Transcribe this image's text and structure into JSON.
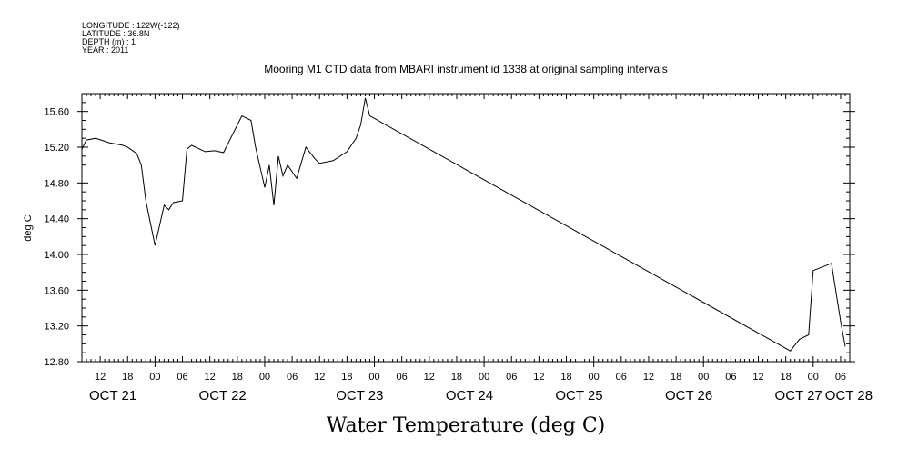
{
  "header": {
    "lines": [
      "LONGITUDE : 122W(-122)",
      "LATITUDE : 36.8N",
      "DEPTH (m) : 1",
      "YEAR : 2011"
    ]
  },
  "chart_data": {
    "type": "line",
    "title": "Mooring M1 CTD data from MBARI instrument id 1338 at original sampling intervals",
    "xlabel": "Water Temperature (deg C)",
    "ylabel": "deg C",
    "ylim": [
      12.8,
      15.8
    ],
    "yticks": [
      12.8,
      13.2,
      13.6,
      14.0,
      14.4,
      14.8,
      15.2,
      15.6
    ],
    "ytick_labels": [
      "12.80",
      "13.20",
      "13.60",
      "14.00",
      "14.40",
      "14.80",
      "15.20",
      "15.60"
    ],
    "xlim": [
      "2011-10-21T08:00",
      "2011-10-28T08:00"
    ],
    "xtick_labels": [
      "12",
      "18",
      "00",
      "06",
      "12",
      "18",
      "00",
      "06",
      "12",
      "18",
      "00",
      "06",
      "12",
      "18",
      "00",
      "06",
      "12",
      "18",
      "00",
      "06",
      "12",
      "18",
      "00",
      "06",
      "12",
      "18",
      "00",
      "06"
    ],
    "day_labels": [
      "OCT 21",
      "OCT 22",
      "OCT 23",
      "OCT 24",
      "OCT 25",
      "OCT 26",
      "OCT 27",
      "OCT 28"
    ],
    "grid": false,
    "x": [
      "2011-10-21T08:00",
      "2011-10-21T09:00",
      "2011-10-21T11:00",
      "2011-10-21T14:00",
      "2011-10-21T17:00",
      "2011-10-21T18:00",
      "2011-10-21T20:00",
      "2011-10-21T21:00",
      "2011-10-21T22:00",
      "2011-10-22T00:00",
      "2011-10-22T02:00",
      "2011-10-22T03:00",
      "2011-10-22T04:00",
      "2011-10-22T06:00",
      "2011-10-22T07:00",
      "2011-10-22T08:00",
      "2011-10-22T11:00",
      "2011-10-22T13:00",
      "2011-10-22T15:00",
      "2011-10-22T19:00",
      "2011-10-22T21:00",
      "2011-10-22T22:00",
      "2011-10-23T00:00",
      "2011-10-23T01:00",
      "2011-10-23T02:00",
      "2011-10-23T03:00",
      "2011-10-23T04:00",
      "2011-10-23T05:00",
      "2011-10-23T07:00",
      "2011-10-23T09:00",
      "2011-10-23T11:00",
      "2011-10-23T12:00",
      "2011-10-23T15:00",
      "2011-10-23T18:00",
      "2011-10-23T20:00",
      "2011-10-23T21:00",
      "2011-10-23T22:00",
      "2011-10-23T23:00",
      "2011-10-27T19:00",
      "2011-10-27T21:00",
      "2011-10-27T23:00",
      "2011-10-28T00:00",
      "2011-10-28T02:00",
      "2011-10-28T04:00",
      "2011-10-28T06:00",
      "2011-10-28T07:00"
    ],
    "y": [
      15.18,
      15.28,
      15.3,
      15.25,
      15.22,
      15.2,
      15.13,
      15.0,
      14.6,
      14.1,
      14.55,
      14.5,
      14.58,
      14.6,
      15.18,
      15.22,
      15.15,
      15.16,
      15.14,
      15.55,
      15.5,
      15.2,
      14.75,
      15.0,
      14.55,
      15.1,
      14.88,
      15.0,
      14.85,
      15.2,
      15.07,
      15.02,
      15.05,
      15.15,
      15.3,
      15.45,
      15.75,
      15.55,
      12.92,
      13.05,
      13.1,
      13.82,
      13.86,
      13.9,
      13.25,
      12.97
    ]
  }
}
